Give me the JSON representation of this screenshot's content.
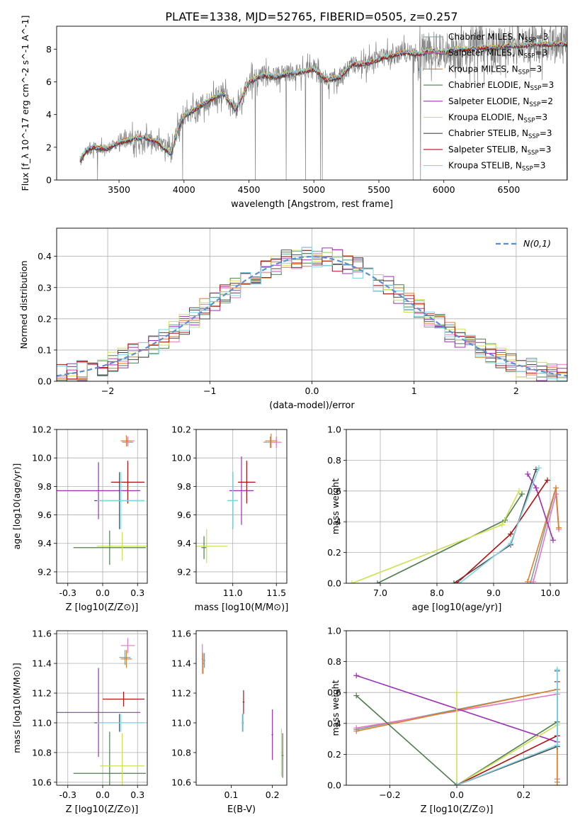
{
  "figure_title": "PLATE=1338, MJD=52765, FIBERID=0505, z=0.257",
  "palette": {
    "Chabrier MILES": "#7a9e9e",
    "Salpeter MILES": "#e377c2",
    "Kroupa MILES": "#dd7f2a",
    "Chabrier ELODIE": "#4e7d4e",
    "Salpeter ELODIE": "#9b30b5",
    "Kroupa ELODIE": "#cde054",
    "Chabrier STELIB": "#4a4a4a",
    "Salpeter STELIB": "#b01010",
    "Kroupa STELIB": "#7fd4e6",
    "data": "#808080",
    "normal": "#5b8fd4"
  },
  "chart_data": [
    {
      "id": "spectrum",
      "type": "line",
      "title": "PLATE=1338, MJD=52765, FIBERID=0505, z=0.257",
      "xlabel": "wavelength [Angstrom, rest frame]",
      "ylabel": "Flux [f_λ 10^-17 erg cm^-2 s^-1 A^-1]",
      "xlim": [
        3020,
        6950
      ],
      "ylim": [
        0,
        9.4
      ],
      "xticks": [
        3500,
        4000,
        4500,
        5000,
        5500,
        6000,
        6500
      ],
      "yticks": [
        0,
        2,
        4,
        6,
        8
      ],
      "legend_position": "right",
      "data_anchors": {
        "x": [
          3200,
          3250,
          3300,
          3400,
          3500,
          3600,
          3700,
          3800,
          3900,
          3950,
          4000,
          4100,
          4200,
          4300,
          4400,
          4500,
          4600,
          4700,
          4800,
          4900,
          5000,
          5100,
          5200,
          5300,
          5400,
          5500,
          5600,
          5700,
          5800,
          5900,
          6000,
          6100,
          6200,
          6300,
          6400,
          6500,
          6600,
          6700,
          6800
        ],
        "y": [
          1.2,
          1.8,
          2.0,
          1.9,
          2.3,
          2.5,
          2.6,
          2.3,
          1.6,
          3.0,
          3.9,
          4.4,
          4.9,
          5.3,
          4.3,
          6.0,
          6.4,
          6.3,
          6.5,
          6.6,
          6.8,
          6.1,
          6.3,
          7.1,
          7.1,
          7.4,
          7.6,
          7.8,
          7.7,
          7.9,
          7.8,
          8.0,
          8.0,
          8.1,
          8.1,
          8.2,
          8.2,
          8.3,
          8.3
        ]
      },
      "series": [
        {
          "name": "Chabrier MILES, N_SSP=3"
        },
        {
          "name": "Salpeter MILES, N_SSP=3"
        },
        {
          "name": "Kroupa MILES, N_SSP=3"
        },
        {
          "name": "Chabrier ELODIE, N_SSP=3"
        },
        {
          "name": "Salpeter ELODIE, N_SSP=2"
        },
        {
          "name": "Kroupa ELODIE, N_SSP=3"
        },
        {
          "name": "Chabrier STELIB, N_SSP=3"
        },
        {
          "name": "Salpeter STELIB, N_SSP=3"
        },
        {
          "name": "Kroupa STELIB, N_SSP=3"
        }
      ]
    },
    {
      "id": "residuals",
      "type": "line",
      "xlabel": "(data-model)/error",
      "ylabel": "Normed distribution",
      "xlim": [
        -2.5,
        2.5
      ],
      "ylim": [
        0,
        0.49
      ],
      "xticks": [
        -2,
        -1,
        0,
        1,
        2
      ],
      "yticks": [
        0.0,
        0.1,
        0.2,
        0.3,
        0.4
      ],
      "grid": true,
      "legend_position": "top-right",
      "legend": "N(0,1)",
      "bin_width": 0.1
    },
    {
      "id": "age-vs-Z",
      "type": "scatter",
      "xlabel": "Z [log10(Z/Z⊙)]",
      "ylabel": "age [log10(age/yr)]",
      "xlim": [
        -0.33,
        0.32
      ],
      "ylim": [
        9.12,
        10.2
      ],
      "xticks": [
        -0.25,
        0.0,
        0.25
      ],
      "yticks": [
        9.2,
        9.4,
        9.6,
        9.8,
        10.0,
        10.2
      ],
      "grid": true,
      "points": [
        {
          "name": "Chabrier MILES",
          "x": 0.18,
          "y": 10.11,
          "xerr": 0.04,
          "yerr": 0.03
        },
        {
          "name": "Salpeter MILES",
          "x": 0.18,
          "y": 10.12,
          "xerr": 0.05,
          "yerr": 0.03
        },
        {
          "name": "Kroupa MILES",
          "x": 0.17,
          "y": 10.12,
          "xerr": 0.04,
          "yerr": 0.04
        },
        {
          "name": "Chabrier ELODIE",
          "x": 0.05,
          "y": 9.37,
          "xerr": 0.26,
          "yerr": 0.12
        },
        {
          "name": "Salpeter ELODIE",
          "x": -0.03,
          "y": 9.77,
          "xerr": 0.3,
          "yerr": 0.2
        },
        {
          "name": "Kroupa ELODIE",
          "x": 0.14,
          "y": 9.38,
          "xerr": 0.18,
          "yerr": 0.1
        },
        {
          "name": "Chabrier STELIB",
          "x": 0.12,
          "y": 9.7,
          "xerr": 0.18,
          "yerr": 0.2
        },
        {
          "name": "Salpeter STELIB",
          "x": 0.18,
          "y": 9.83,
          "xerr": 0.12,
          "yerr": 0.15
        },
        {
          "name": "Kroupa STELIB",
          "x": 0.13,
          "y": 9.7,
          "xerr": 0.17,
          "yerr": 0.2
        }
      ]
    },
    {
      "id": "age-vs-mass",
      "type": "scatter",
      "xlabel": "mass [log10(M/M⊙)]",
      "xlim": [
        10.58,
        11.62
      ],
      "ylim": [
        9.12,
        10.2
      ],
      "xticks": [
        11.0,
        11.5
      ],
      "yticks": [
        9.2,
        9.4,
        9.6,
        9.8,
        10.0,
        10.2
      ],
      "grid": true,
      "points": [
        {
          "name": "Chabrier MILES",
          "x": 11.43,
          "y": 10.11,
          "xerr": 0.08,
          "yerr": 0.04
        },
        {
          "name": "Salpeter MILES",
          "x": 11.5,
          "y": 10.11,
          "xerr": 0.06,
          "yerr": 0.04
        },
        {
          "name": "Kroupa MILES",
          "x": 11.44,
          "y": 10.12,
          "xerr": 0.07,
          "yerr": 0.05
        },
        {
          "name": "Chabrier ELODIE",
          "x": 10.67,
          "y": 9.37,
          "xerr": 0.03,
          "yerr": 0.08
        },
        {
          "name": "Salpeter ELODIE",
          "x": 11.1,
          "y": 9.77,
          "xerr": 0.14,
          "yerr": 0.24
        },
        {
          "name": "Kroupa ELODIE",
          "x": 10.7,
          "y": 9.38,
          "xerr": 0.24,
          "yerr": 0.12
        },
        {
          "name": "Chabrier STELIB",
          "x": 11.0,
          "y": 9.7,
          "xerr": 0.06,
          "yerr": 0.2
        },
        {
          "name": "Salpeter STELIB",
          "x": 11.16,
          "y": 9.83,
          "xerr": 0.1,
          "yerr": 0.15
        },
        {
          "name": "Kroupa STELIB",
          "x": 11.0,
          "y": 9.7,
          "xerr": 0.06,
          "yerr": 0.2
        }
      ]
    },
    {
      "id": "weight-vs-age",
      "type": "line",
      "xlabel": "age [log10(age/yr)]",
      "ylabel": "mass weight",
      "xlim": [
        6.4,
        10.3
      ],
      "ylim": [
        0,
        1.0
      ],
      "xticks": [
        7,
        8,
        9,
        10
      ],
      "yticks": [
        0.0,
        0.2,
        0.4,
        0.6,
        0.8,
        1.0
      ],
      "grid": true,
      "series": [
        {
          "name": "Chabrier MILES",
          "x": [
            9.65,
            10.1,
            10.15
          ],
          "y": [
            0.0,
            0.62,
            0.36
          ]
        },
        {
          "name": "Salpeter MILES",
          "x": [
            9.7,
            10.1,
            10.15
          ],
          "y": [
            0.01,
            0.58,
            0.35
          ]
        },
        {
          "name": "Kroupa MILES",
          "x": [
            9.6,
            10.1,
            10.15
          ],
          "y": [
            0.01,
            0.62,
            0.36
          ]
        },
        {
          "name": "Chabrier ELODIE",
          "x": [
            6.95,
            9.2,
            9.5
          ],
          "y": [
            0.0,
            0.41,
            0.58
          ]
        },
        {
          "name": "Salpeter ELODIE",
          "x": [
            9.6,
            9.75,
            10.05
          ],
          "y": [
            0.71,
            0.62,
            0.28
          ]
        },
        {
          "name": "Kroupa ELODIE",
          "x": [
            6.5,
            9.15,
            9.45
          ],
          "y": [
            0.0,
            0.38,
            0.6
          ]
        },
        {
          "name": "Chabrier STELIB",
          "x": [
            8.3,
            9.3,
            9.75
          ],
          "y": [
            0.0,
            0.25,
            0.74
          ]
        },
        {
          "name": "Salpeter STELIB",
          "x": [
            8.35,
            9.3,
            9.95
          ],
          "y": [
            0.0,
            0.32,
            0.67
          ]
        },
        {
          "name": "Kroupa STELIB",
          "x": [
            8.4,
            9.3,
            9.8
          ],
          "y": [
            0.0,
            0.26,
            0.75
          ]
        }
      ]
    },
    {
      "id": "mass-vs-Z",
      "type": "scatter",
      "xlabel": "Z [log10(Z/Z⊙)]",
      "ylabel": "mass [log10(M/M⊙)]",
      "xlim": [
        -0.33,
        0.32
      ],
      "ylim": [
        10.58,
        11.62
      ],
      "xticks": [
        -0.25,
        0.0,
        0.25
      ],
      "yticks": [
        10.6,
        10.8,
        11.0,
        11.2,
        11.4,
        11.6
      ],
      "grid": true,
      "points": [
        {
          "name": "Chabrier MILES",
          "x": 0.16,
          "y": 11.44,
          "xerr": 0.04,
          "yerr": 0.05
        },
        {
          "name": "Salpeter MILES",
          "x": 0.18,
          "y": 11.52,
          "xerr": 0.05,
          "yerr": 0.05
        },
        {
          "name": "Kroupa MILES",
          "x": 0.17,
          "y": 11.43,
          "xerr": 0.04,
          "yerr": 0.06
        },
        {
          "name": "Chabrier ELODIE",
          "x": 0.05,
          "y": 10.66,
          "xerr": 0.26,
          "yerr": 0.28
        },
        {
          "name": "Salpeter ELODIE",
          "x": -0.03,
          "y": 11.07,
          "xerr": 0.3,
          "yerr": 0.3
        },
        {
          "name": "Kroupa ELODIE",
          "x": 0.14,
          "y": 10.71,
          "xerr": 0.16,
          "yerr": 0.22
        },
        {
          "name": "Chabrier STELIB",
          "x": 0.12,
          "y": 11.0,
          "xerr": 0.18,
          "yerr": 0.06
        },
        {
          "name": "Salpeter STELIB",
          "x": 0.15,
          "y": 11.16,
          "xerr": 0.15,
          "yerr": 0.05
        },
        {
          "name": "Kroupa STELIB",
          "x": 0.13,
          "y": 11.0,
          "xerr": 0.17,
          "yerr": 0.06
        }
      ]
    },
    {
      "id": "mass-vs-EBV",
      "type": "scatter",
      "xlabel": "E(B-V)",
      "xlim": [
        0.015,
        0.235
      ],
      "ylim": [
        10.58,
        11.62
      ],
      "xticks": [
        0.1,
        0.2
      ],
      "yticks": [
        10.6,
        10.8,
        11.0,
        11.2,
        11.4,
        11.6
      ],
      "grid": false,
      "points": [
        {
          "name": "Chabrier MILES",
          "x": 0.035,
          "y": 11.42,
          "xerr": 0.002,
          "yerr": 0.05
        },
        {
          "name": "Salpeter MILES",
          "x": 0.03,
          "y": 11.43,
          "xerr": 0.002,
          "yerr": 0.1
        },
        {
          "name": "Kroupa MILES",
          "x": 0.032,
          "y": 11.4,
          "xerr": 0.002,
          "yerr": 0.07
        },
        {
          "name": "Chabrier ELODIE",
          "x": 0.225,
          "y": 10.78,
          "xerr": 0.002,
          "yerr": 0.15
        },
        {
          "name": "Salpeter ELODIE",
          "x": 0.2,
          "y": 10.92,
          "xerr": 0.002,
          "yerr": 0.17
        },
        {
          "name": "Kroupa ELODIE",
          "x": 0.222,
          "y": 10.8,
          "xerr": 0.002,
          "yerr": 0.16
        },
        {
          "name": "Chabrier STELIB",
          "x": 0.128,
          "y": 11.0,
          "xerr": 0.002,
          "yerr": 0.06
        },
        {
          "name": "Salpeter STELIB",
          "x": 0.13,
          "y": 11.14,
          "xerr": 0.002,
          "yerr": 0.08
        },
        {
          "name": "Kroupa STELIB",
          "x": 0.127,
          "y": 11.0,
          "xerr": 0.002,
          "yerr": 0.06
        }
      ]
    },
    {
      "id": "weight-vs-Z",
      "type": "line",
      "xlabel": "Z [log10(Z/Z⊙)]",
      "ylabel": "mass weight",
      "xlim": [
        -0.33,
        0.33
      ],
      "ylim": [
        0,
        1.0
      ],
      "xticks": [
        -0.2,
        0.0,
        0.2
      ],
      "yticks": [
        0.0,
        0.2,
        0.4,
        0.6,
        0.8,
        1.0
      ],
      "grid": true,
      "series": [
        {
          "name": "Chabrier MILES",
          "x": [
            -0.3,
            0.3,
            0.3
          ],
          "y": [
            0.36,
            0.62,
            0.02
          ]
        },
        {
          "name": "Salpeter MILES",
          "x": [
            -0.3,
            0.3,
            0.3
          ],
          "y": [
            0.37,
            0.59,
            0.04
          ]
        },
        {
          "name": "Kroupa MILES",
          "x": [
            -0.3,
            0.3,
            0.3
          ],
          "y": [
            0.35,
            0.62,
            0.0
          ]
        },
        {
          "name": "Chabrier ELODIE",
          "x": [
            -0.3,
            0.0,
            0.3
          ],
          "y": [
            0.58,
            0.0,
            0.41
          ]
        },
        {
          "name": "Salpeter ELODIE",
          "x": [
            -0.3,
            0.3
          ],
          "y": [
            0.71,
            0.28
          ]
        },
        {
          "name": "Kroupa ELODIE",
          "x": [
            0.0,
            0.0,
            0.3
          ],
          "y": [
            0.6,
            0.0,
            0.39
          ]
        },
        {
          "name": "Chabrier STELIB",
          "x": [
            0.0,
            0.3,
            0.3
          ],
          "y": [
            0.0,
            0.25,
            0.74
          ]
        },
        {
          "name": "Salpeter STELIB",
          "x": [
            0.0,
            0.3,
            0.3
          ],
          "y": [
            0.0,
            0.32,
            0.67
          ]
        },
        {
          "name": "Kroupa STELIB",
          "x": [
            0.0,
            0.3,
            0.3
          ],
          "y": [
            0.0,
            0.26,
            0.75
          ]
        }
      ]
    }
  ]
}
